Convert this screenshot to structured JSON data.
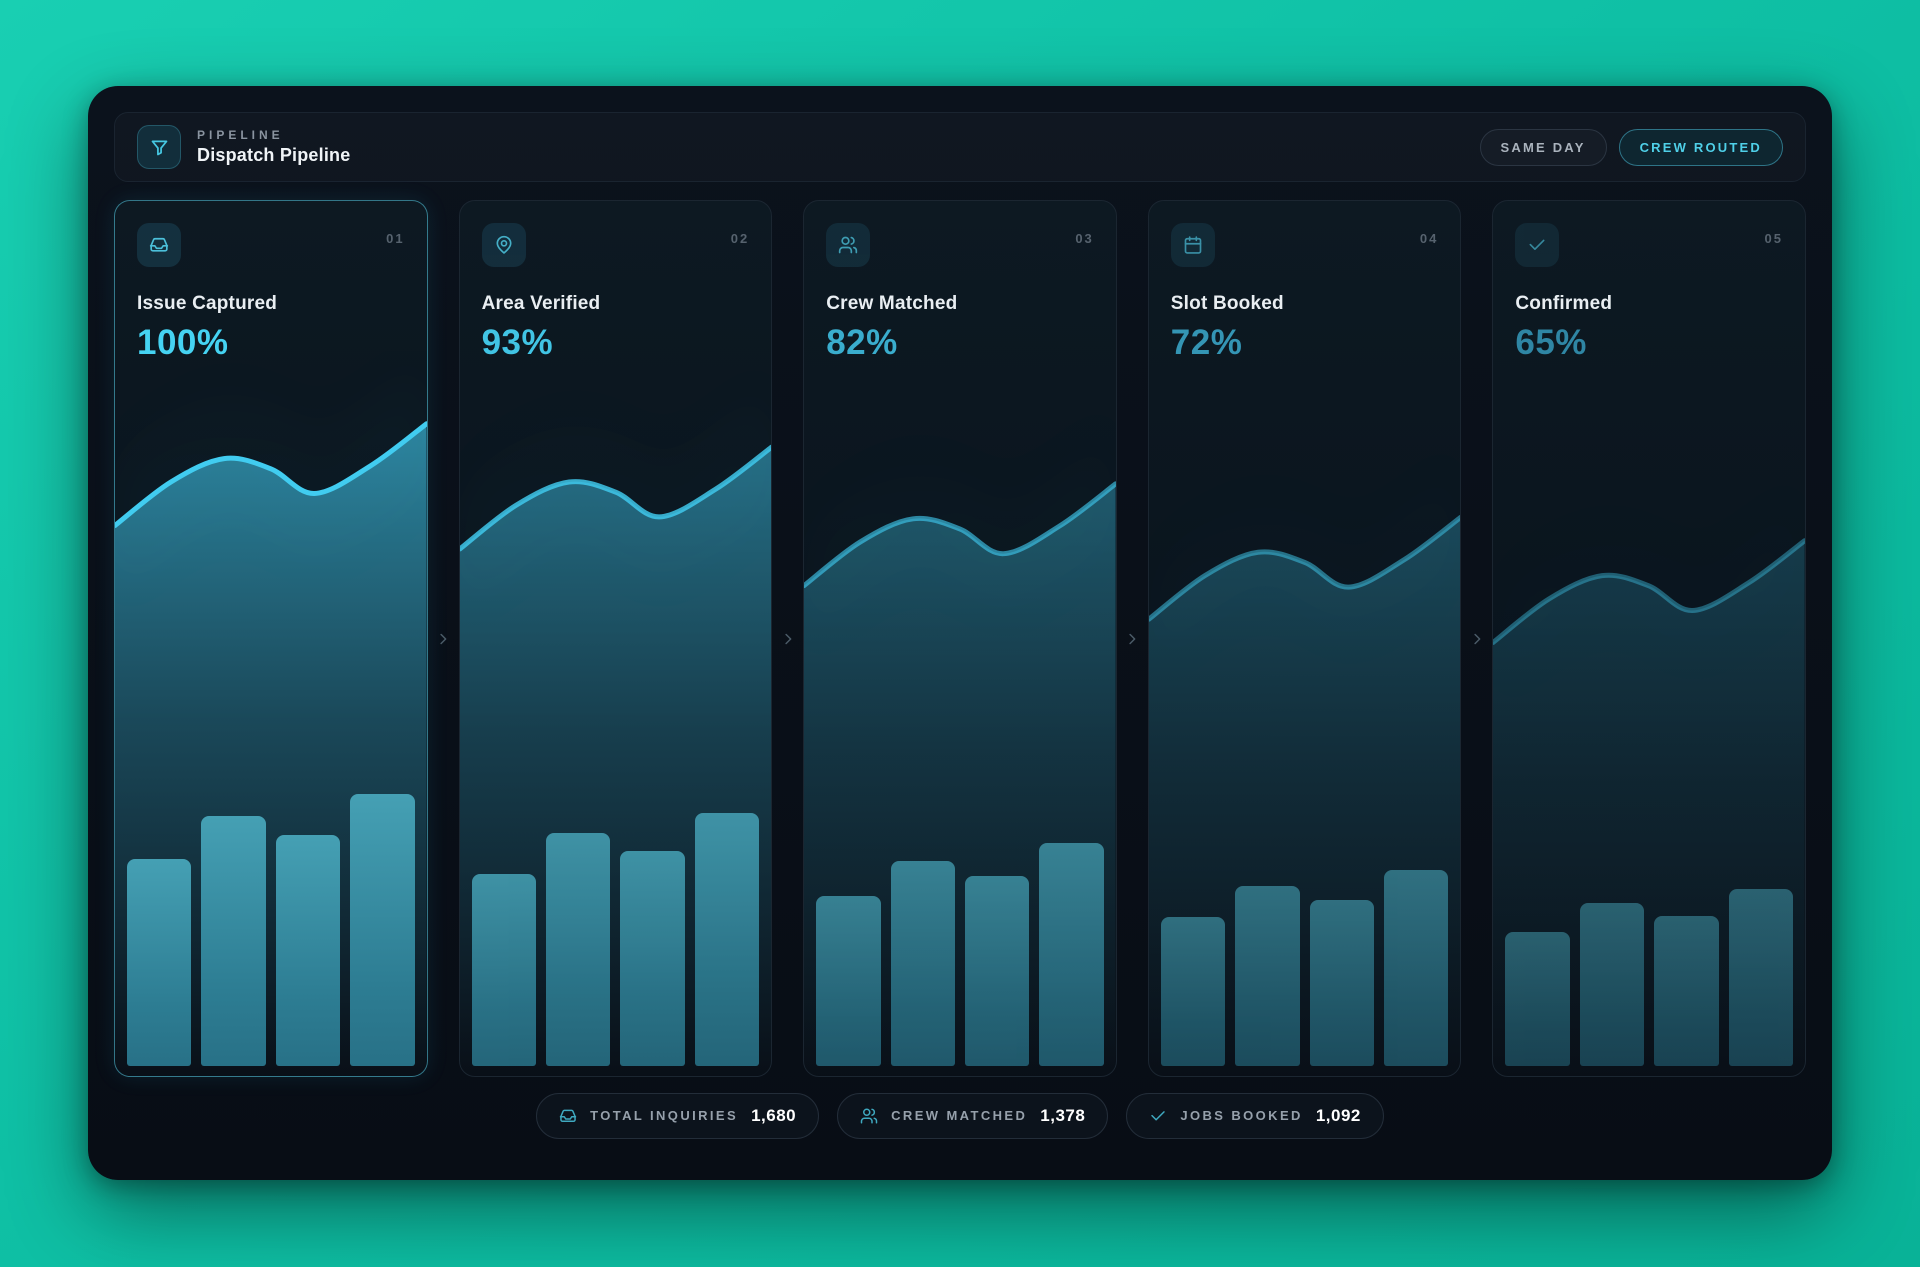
{
  "header": {
    "eyebrow": "PIPELINE",
    "title": "Dispatch Pipeline",
    "icon": "funnel-icon",
    "buttons": [
      {
        "label": "SAME DAY",
        "variant": "ghost"
      },
      {
        "label": "CREW ROUTED",
        "variant": "accent"
      }
    ]
  },
  "stages": [
    {
      "index": "01",
      "label": "Issue Captured",
      "pct": 100,
      "pct_label": "100%",
      "icon": "inbox-icon",
      "accent": "#45d3f2"
    },
    {
      "index": "02",
      "label": "Area Verified",
      "pct": 93,
      "pct_label": "93%",
      "icon": "map-pin-icon",
      "accent": "#41c4e4"
    },
    {
      "index": "03",
      "label": "Crew Matched",
      "pct": 82,
      "pct_label": "82%",
      "icon": "users-icon",
      "accent": "#3aadcd"
    },
    {
      "index": "04",
      "label": "Slot Booked",
      "pct": 72,
      "pct_label": "72%",
      "icon": "calendar-icon",
      "accent": "#3495b4"
    },
    {
      "index": "05",
      "label": "Confirmed",
      "pct": 65,
      "pct_label": "65%",
      "icon": "check-icon",
      "accent": "#2f86a4"
    }
  ],
  "footer": {
    "stats": [
      {
        "icon": "inbox-icon",
        "label": "TOTAL INQUIRIES",
        "value": "1,680"
      },
      {
        "icon": "users-icon",
        "label": "CREW MATCHED",
        "value": "1,378"
      },
      {
        "icon": "check-icon",
        "label": "JOBS BOOKED",
        "value": "1,092"
      }
    ]
  },
  "colors": {
    "page_bg": "#0fc0a5",
    "window_bg": "#0a1018",
    "spark_line": "#41ccf0",
    "spark_fill": "#2e8aa5",
    "bar_top": "#45a0b4",
    "bar_bottom": "#287187",
    "active_card_border": "#56cce6"
  },
  "chart_data": {
    "type": "area",
    "title": "Stage sparklines with volume bars (one per pipeline stage)",
    "categories": [
      "Issue Captured",
      "Area Verified",
      "Crew Matched",
      "Slot Booked",
      "Confirmed"
    ],
    "stages_pct": [
      100,
      93,
      82,
      72,
      65
    ],
    "wave_x": [
      0,
      0.18,
      0.35,
      0.5,
      0.64,
      0.82,
      1
    ],
    "wave_y_base": [
      0.24,
      0.18,
      0.148,
      0.162,
      0.196,
      0.158,
      0.1
    ],
    "wave_shift_per_missing_pct": 0.0046,
    "bar_pattern": [
      0.76,
      0.92,
      0.85,
      1.0
    ],
    "stage_line_opacity": [
      1,
      0.82,
      0.62,
      0.5,
      0.4
    ],
    "stage_fill_opacity": [
      1,
      0.8,
      0.6,
      0.46,
      0.34
    ],
    "stage_bar_opacity": [
      1,
      0.88,
      0.75,
      0.62,
      0.52
    ],
    "grid": false,
    "legend": false
  }
}
